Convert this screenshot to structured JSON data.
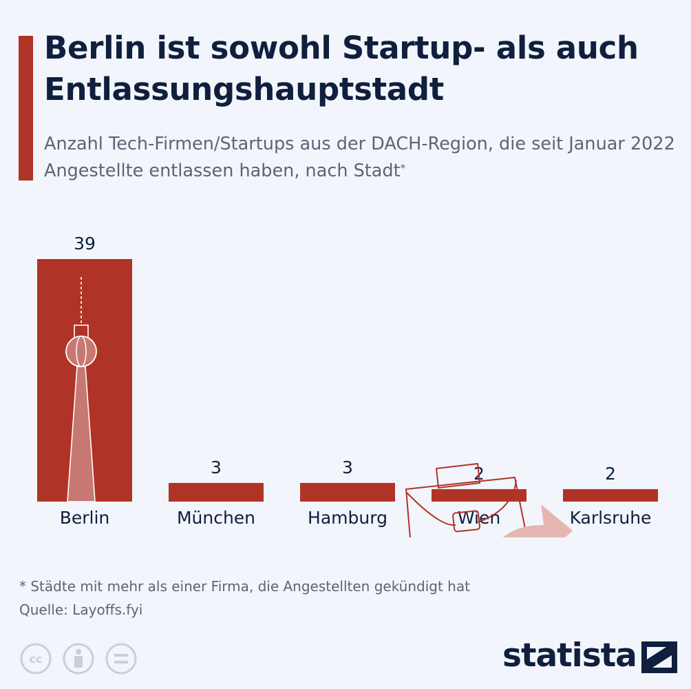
{
  "header": {
    "title": "Berlin ist sowohl Startup- als auch Entlassungshauptstadt",
    "subtitle": "Anzahl Tech-Firmen/Startups aus der DACH-Region, die seit Januar 2022 Angestellte entlassen haben, nach Stadt",
    "subtitle_mark": "*"
  },
  "chart_data": {
    "type": "bar",
    "categories": [
      "Berlin",
      "München",
      "Hamburg",
      "Wien",
      "Karlsruhe"
    ],
    "values": [
      39,
      3,
      3,
      2,
      2
    ],
    "title": "Berlin ist sowohl Startup- als auch Entlassungshauptstadt",
    "xlabel": "",
    "ylabel": "",
    "ylim": [
      0,
      39
    ],
    "grid": false,
    "legend": "none",
    "data_labels": true,
    "bar_color": "#b03327"
  },
  "footer": {
    "note": "* Städte mit mehr als einer Firma, die Angestellten gekündigt hat",
    "source": "Quelle: Layoffs.fyi",
    "brand": "statista"
  },
  "colors": {
    "accent": "#b03327",
    "title": "#0f1f3d",
    "text": "#5a6577",
    "background": "#f2f5fb"
  },
  "icons": [
    "tv-tower-icon",
    "briefcase-icon",
    "arrow-right-icon",
    "cc-icon",
    "person-icon",
    "equals-icon",
    "statista-logo-icon"
  ]
}
